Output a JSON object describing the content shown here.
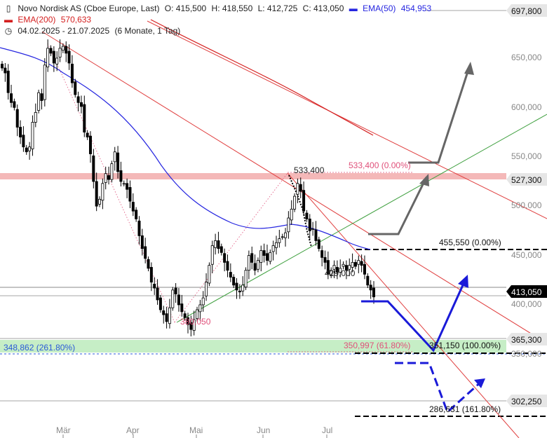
{
  "header": {
    "title": "Novo Nordisk AS (Cboe Europe, Last)",
    "open": "O: 415,500",
    "high": "H: 418,550",
    "low": "L: 412,725",
    "close": "C: 413,050",
    "ema50_label": "EMA(50)",
    "ema50_value": "454,953",
    "ema200_label": "EMA(200)",
    "ema200_value": "570,633",
    "range": "04.02.2025 - 21.07.2025",
    "period": "(6 Monate, 1 Tag)"
  },
  "colors": {
    "candle": "#000000",
    "ema50": "#2626e0",
    "ema200": "#d42020",
    "channel": "#e04040",
    "support_line": "#40a040",
    "fib_text": "#e0507a",
    "arrow_up_grey": "#666666",
    "arrow_blue": "#1a1ad8",
    "zone_red": "#f4b8b8",
    "zone_green": "#c6eec6",
    "price_tag": "#000000"
  },
  "chart_data": {
    "type": "candlestick",
    "title": "Novo Nordisk AS (Cboe Europe, Last)",
    "x_range": [
      "2025-02-04",
      "2025-07-21"
    ],
    "x_ticks": [
      "Mär",
      "Apr",
      "Mai",
      "Jun",
      "Jul"
    ],
    "y_axis_labels": [
      "650,000",
      "600,000",
      "550,000",
      "500,000",
      "450,000",
      "400,000",
      "350,000"
    ],
    "ylim": [
      300,
      705
    ],
    "closes": [
      645,
      640,
      620,
      610,
      605,
      585,
      575,
      565,
      560,
      565,
      590,
      600,
      620,
      612,
      648,
      665,
      660,
      650,
      655,
      665,
      667,
      660,
      650,
      630,
      618,
      610,
      606,
      580,
      575,
      558,
      530,
      505,
      512,
      528,
      538,
      532,
      548,
      560,
      540,
      530,
      528,
      522,
      510,
      500,
      492,
      475,
      462,
      452,
      442,
      428,
      422,
      410,
      400,
      395,
      388,
      402,
      420,
      416,
      405,
      398,
      392,
      385,
      380,
      390,
      400,
      405,
      412,
      428,
      445,
      465,
      470,
      462,
      458,
      448,
      440,
      433,
      425,
      420,
      418,
      425,
      440,
      455,
      448,
      440,
      450,
      460,
      455,
      450,
      458,
      465,
      468,
      472,
      474,
      478,
      493,
      502,
      515,
      528,
      520,
      500,
      492,
      480,
      482,
      470,
      462,
      453,
      448,
      436,
      440,
      445,
      438,
      442,
      446,
      440,
      445,
      448,
      444,
      450,
      445,
      436,
      425,
      420,
      413
    ],
    "series": [
      {
        "name": "EMA(50)",
        "value": 454.953
      },
      {
        "name": "EMA(200)",
        "value": 570.633
      }
    ],
    "ohlc_last": {
      "open": 415.5,
      "high": 418.55,
      "low": 412.725,
      "close": 413.05
    },
    "price_tags": [
      "697,800",
      "527,300",
      "413,050",
      "365,300",
      "302,250"
    ],
    "annotations": {
      "high": "533,400",
      "low": "380,050",
      "mid": "429,000",
      "fib_top": "533,400 (0.00%)",
      "fib_mid": "350,997 (61.80%)",
      "fib_ext": "348,862 (261.80%)",
      "target_1": "455,550 (0.00%)",
      "target_2": "351,150 (100.00%)",
      "target_3": "286,631 (161.80%)"
    }
  }
}
